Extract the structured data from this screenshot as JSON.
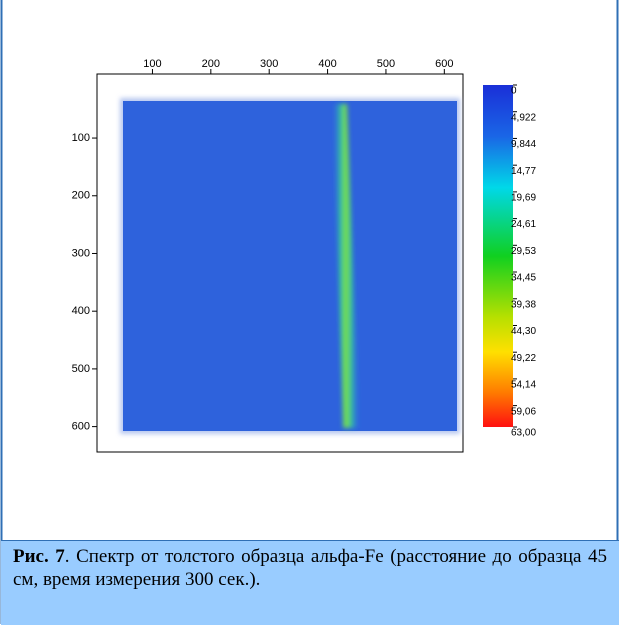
{
  "figure": {
    "xticks": [
      100,
      200,
      300,
      400,
      500,
      600
    ],
    "xlim": [
      5,
      632
    ],
    "yticks": [
      100,
      200,
      300,
      400,
      500,
      600
    ],
    "ylim": [
      -11,
      644
    ],
    "colorbar": {
      "lim": [
        0,
        63
      ],
      "ticks": [
        0,
        {
          "value": 4.922,
          "label": "4,922"
        },
        {
          "value": 9.844,
          "label": "9,844"
        },
        {
          "value": 14.77,
          "label": "14,77"
        },
        {
          "value": 19.69,
          "label": "19,69"
        },
        {
          "value": 24.61,
          "label": "24,61"
        },
        {
          "value": 29.53,
          "label": "29,53"
        },
        {
          "value": 34.45,
          "label": "34,45"
        },
        {
          "value": 39.38,
          "label": "39,38"
        },
        {
          "value": 44.3,
          "label": "44,30"
        },
        {
          "value": 49.22,
          "label": "49,22"
        },
        {
          "value": 54.14,
          "label": "54,14"
        },
        {
          "value": 59.06,
          "label": "59,06"
        },
        {
          "value": 63,
          "label": "63,00"
        }
      ]
    }
  },
  "caption": {
    "label": "Рис. 7",
    "text": ". Спектр от толстого образца альфа-Fe (расстояние до образца 45 см, время измерения 300 сек.)."
  }
}
